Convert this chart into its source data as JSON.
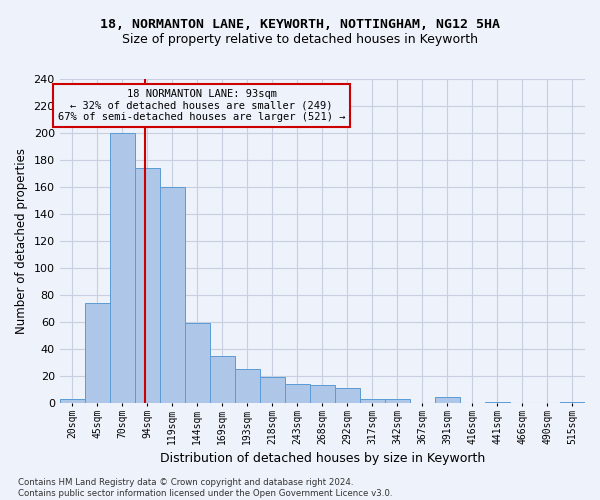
{
  "title1": "18, NORMANTON LANE, KEYWORTH, NOTTINGHAM, NG12 5HA",
  "title2": "Size of property relative to detached houses in Keyworth",
  "xlabel": "Distribution of detached houses by size in Keyworth",
  "ylabel": "Number of detached properties",
  "footnote": "Contains HM Land Registry data © Crown copyright and database right 2024.\nContains public sector information licensed under the Open Government Licence v3.0.",
  "bar_labels": [
    "20sqm",
    "45sqm",
    "70sqm",
    "94sqm",
    "119sqm",
    "144sqm",
    "169sqm",
    "193sqm",
    "218sqm",
    "243sqm",
    "268sqm",
    "292sqm",
    "317sqm",
    "342sqm",
    "367sqm",
    "391sqm",
    "416sqm",
    "441sqm",
    "466sqm",
    "490sqm",
    "515sqm"
  ],
  "bar_values": [
    3,
    74,
    200,
    174,
    160,
    59,
    35,
    25,
    19,
    14,
    13,
    11,
    3,
    3,
    0,
    4,
    0,
    1,
    0,
    0,
    1
  ],
  "bar_color": "#aec6e8",
  "bar_edge_color": "#5b9bd5",
  "annotation_text_line1": "18 NORMANTON LANE: 93sqm",
  "annotation_text_line2": "← 32% of detached houses are smaller (249)",
  "annotation_text_line3": "67% of semi-detached houses are larger (521) →",
  "annotation_box_color": "#cc0000",
  "vline_color": "#cc0000",
  "grid_color": "#c8cfe0",
  "background_color": "#eef2fa",
  "ylim": [
    0,
    240
  ],
  "yticks": [
    0,
    20,
    40,
    60,
    80,
    100,
    120,
    140,
    160,
    180,
    200,
    220,
    240
  ],
  "vline_x_index": 2.92
}
